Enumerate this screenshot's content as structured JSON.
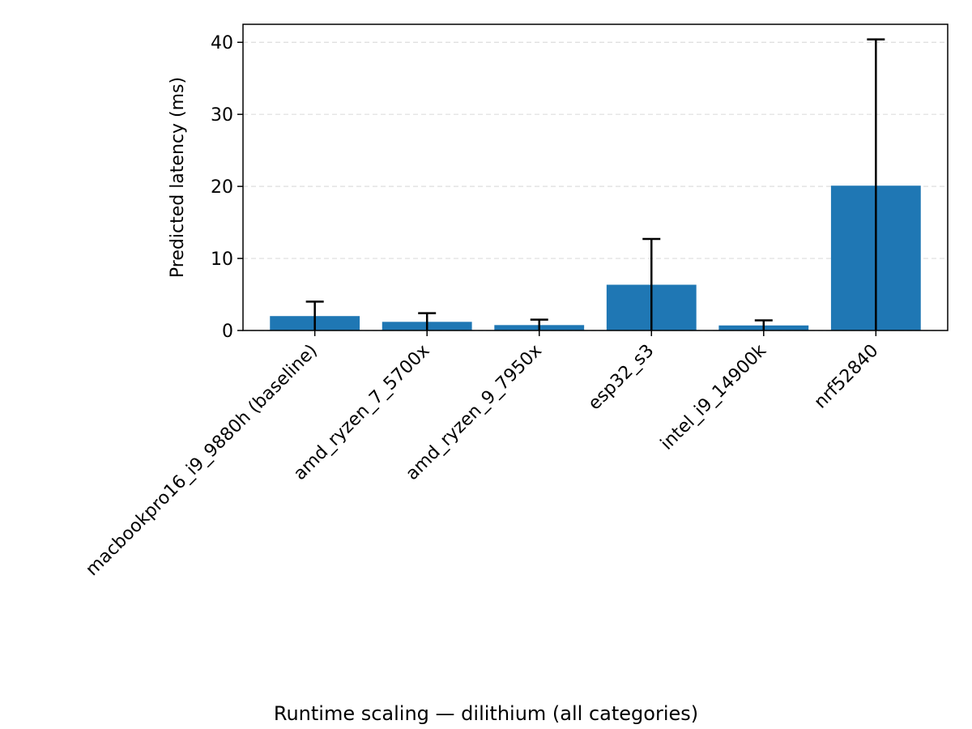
{
  "chart_data": {
    "type": "bar",
    "categories": [
      "macbookpro16_i9_9880h (baseline)",
      "amd_ryzen_7_5700x",
      "amd_ryzen_9_7950x",
      "esp32_s3",
      "intel_i9_14900k",
      "nrf52840"
    ],
    "values": [
      2.0,
      1.2,
      0.75,
      6.35,
      0.7,
      20.1
    ],
    "error": [
      2.0,
      1.2,
      0.75,
      6.35,
      0.7,
      20.3
    ],
    "ylabel": "Predicted latency (ms)",
    "xlabel": "",
    "caption": "Runtime scaling — dilithium (all categories)",
    "ylim": [
      0,
      42.5
    ],
    "yticks": [
      0,
      10,
      20,
      30,
      40
    ],
    "grid": "y-dashed",
    "bar_color": "#1f77b4",
    "error_color": "#000000"
  }
}
